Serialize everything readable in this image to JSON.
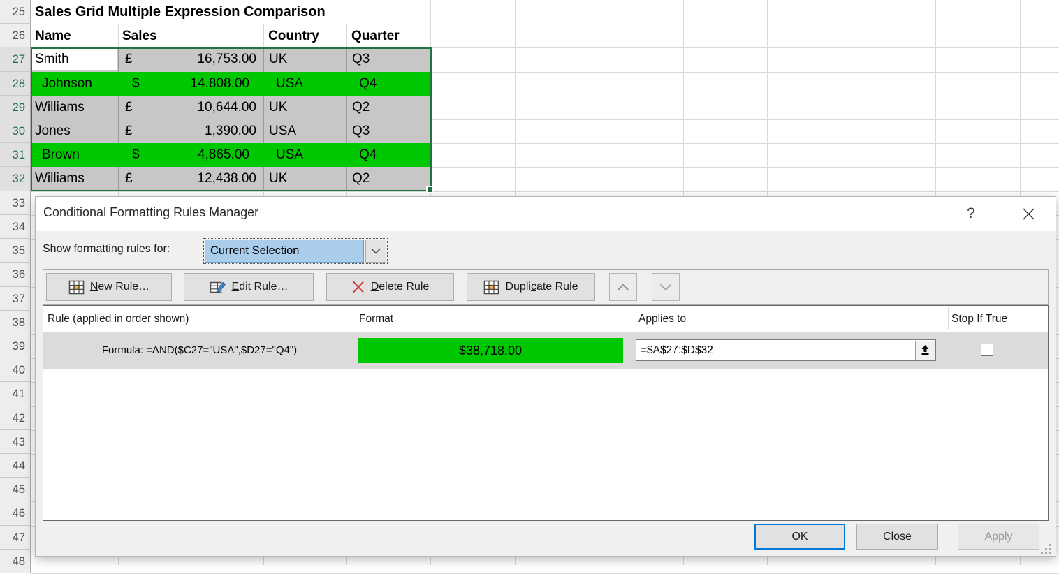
{
  "sheet": {
    "title": "Sales Grid Multiple Expression Comparison",
    "columns": [
      "Name",
      "Sales",
      "Country",
      "Quarter"
    ],
    "rows": [
      {
        "n": 27,
        "name": "Smith",
        "cur": "£",
        "amount": "16,753.00",
        "country": "UK",
        "quarter": "Q3",
        "highlight": false,
        "active_cell": true
      },
      {
        "n": 28,
        "name": "Johnson",
        "cur": "$",
        "amount": "14,808.00",
        "country": "USA",
        "quarter": "Q4",
        "highlight": true,
        "active_cell": false
      },
      {
        "n": 29,
        "name": "Williams",
        "cur": "£",
        "amount": "10,644.00",
        "country": "UK",
        "quarter": "Q2",
        "highlight": false,
        "active_cell": false
      },
      {
        "n": 30,
        "name": "Jones",
        "cur": "£",
        "amount": "1,390.00",
        "country": "USA",
        "quarter": "Q3",
        "highlight": false,
        "active_cell": false
      },
      {
        "n": 31,
        "name": "Brown",
        "cur": "$",
        "amount": "4,865.00",
        "country": "USA",
        "quarter": "Q4",
        "highlight": true,
        "active_cell": false
      },
      {
        "n": 32,
        "name": "Williams",
        "cur": "£",
        "amount": "12,438.00",
        "country": "UK",
        "quarter": "Q2",
        "highlight": false,
        "active_cell": false
      }
    ],
    "row_numbers": [
      25,
      26,
      27,
      28,
      29,
      30,
      31,
      32,
      33,
      34,
      35,
      36,
      37,
      38,
      39,
      40,
      41,
      42,
      43,
      44,
      45,
      46,
      47,
      48
    ],
    "selected_rows": [
      27,
      28,
      29,
      30,
      31,
      32
    ]
  },
  "dialog": {
    "title": "Conditional Formatting Rules Manager",
    "help_glyph": "?",
    "show_rules_label": {
      "u": "S",
      "rest": "how formatting rules for:"
    },
    "show_rules_value": "Current Selection",
    "toolbar": {
      "new_rule": {
        "pre": "",
        "u": "N",
        "rest": "ew Rule…"
      },
      "edit_rule": {
        "pre": "",
        "u": "E",
        "rest": "dit Rule…"
      },
      "delete_rule": {
        "pre": "",
        "u": "D",
        "rest": "elete Rule"
      },
      "duplicate_rule": {
        "pre": "Dupli",
        "u": "c",
        "rest": "ate Rule"
      }
    },
    "list": {
      "headers": [
        "Rule (applied in order shown)",
        "Format",
        "Applies to",
        "Stop If True"
      ],
      "rule": {
        "description": "Formula: =AND($C27=\"USA\",$D27=\"Q4\")",
        "format_preview": "$38,718.00",
        "applies_to": "=$A$27:$D$32",
        "stop_if_true": false
      }
    },
    "footer": {
      "ok": "OK",
      "close": "Close",
      "apply": "Apply"
    }
  },
  "colors": {
    "highlight_green": "#00C800",
    "selected_cell_gray": "#C8C6C6",
    "selection_border_green": "#217346",
    "combo_highlight_blue": "#A9CDEB",
    "default_button_blue": "#0078D7"
  }
}
